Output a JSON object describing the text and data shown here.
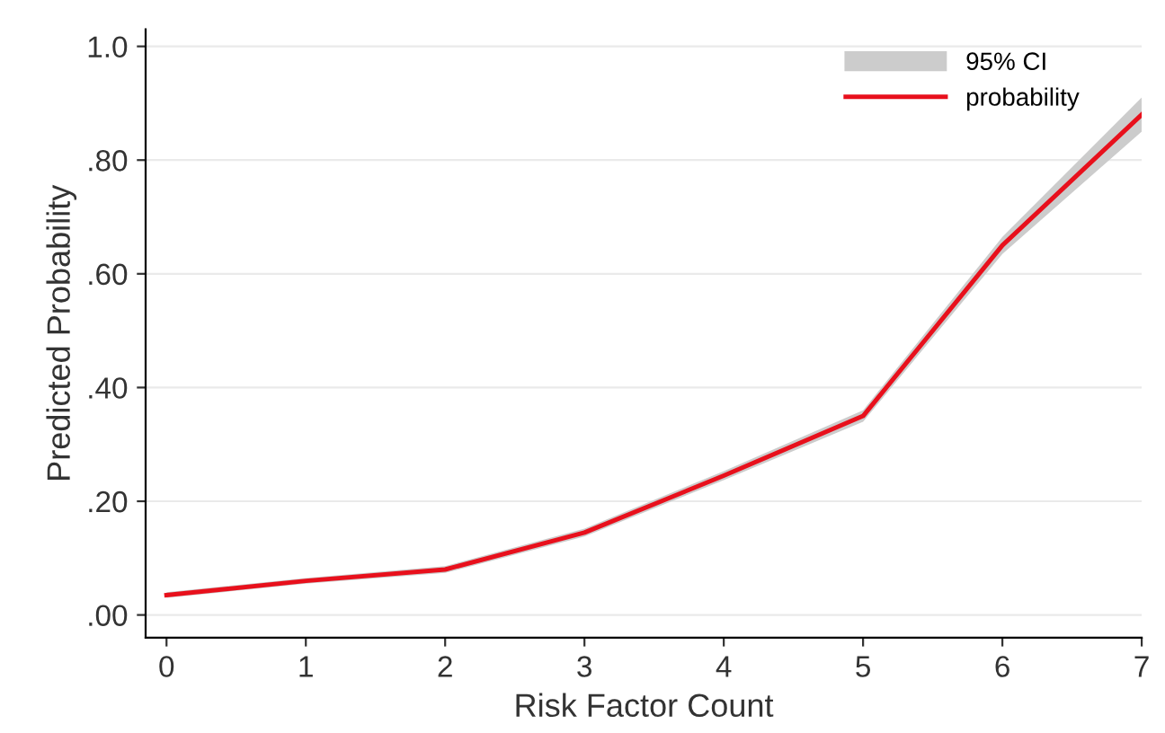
{
  "chart_data": {
    "type": "line",
    "x": [
      0,
      1,
      2,
      3,
      4,
      5,
      6,
      7
    ],
    "series": [
      {
        "name": "probability",
        "color": "#e8101c",
        "values": [
          0.035,
          0.06,
          0.08,
          0.145,
          0.245,
          0.35,
          0.65,
          0.88
        ],
        "lower": [
          0.03,
          0.055,
          0.074,
          0.138,
          0.237,
          0.34,
          0.635,
          0.85
        ],
        "upper": [
          0.04,
          0.065,
          0.086,
          0.152,
          0.253,
          0.36,
          0.665,
          0.91
        ]
      }
    ],
    "annotations": [
      "95% CI"
    ],
    "xlabel": "Risk Factor Count",
    "ylabel": "Predicted Probability",
    "xlim": [
      -0.15,
      7
    ],
    "ylim": [
      -0.04,
      1.03
    ],
    "xticks": [
      0,
      1,
      2,
      3,
      4,
      5,
      6,
      7
    ],
    "yticks": [
      {
        "value": 0,
        "label": ".00"
      },
      {
        "value": 0.2,
        "label": ".20"
      },
      {
        "value": 0.4,
        "label": ".40"
      },
      {
        "value": 0.6,
        "label": ".60"
      },
      {
        "value": 0.8,
        "label": ".80"
      },
      {
        "value": 1.0,
        "label": "1.0"
      }
    ],
    "grid": "y",
    "legend": "top right",
    "marker": "none",
    "line_style": "solid"
  }
}
